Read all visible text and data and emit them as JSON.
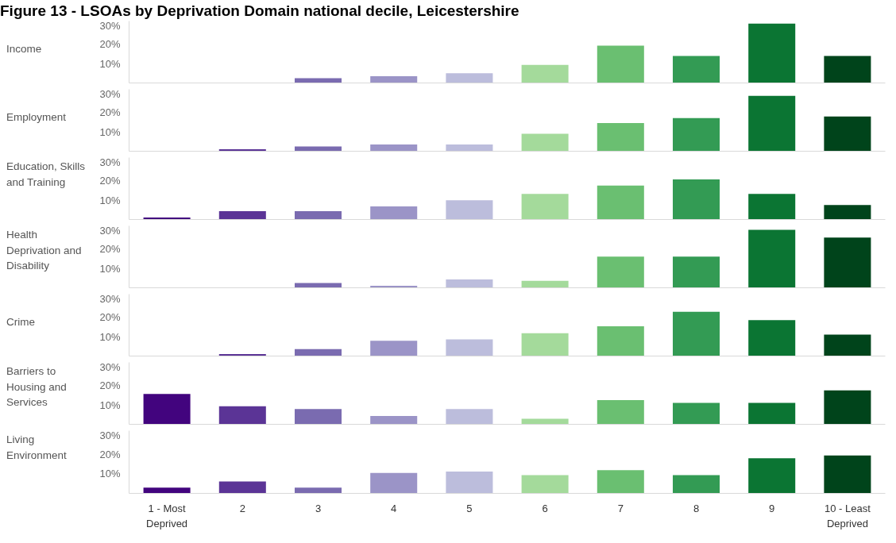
{
  "chart_data": [
    {
      "type": "bar",
      "title": "Figure 13 - LSOAs by Deprivation Domain national decile, Leicestershire",
      "ylabel": "Income",
      "categories": [
        "1 - Most Deprived",
        "2",
        "3",
        "4",
        "5",
        "6",
        "7",
        "8",
        "9",
        "10 - Least Deprived"
      ],
      "values": [
        0,
        0,
        2.5,
        3.5,
        5,
        9.3,
        19.3,
        14,
        30.7,
        14
      ],
      "colors": [
        "#42047e",
        "#5b3496",
        "#7a6bb0",
        "#9b94c7",
        "#bcbddc",
        "#a4da9b",
        "#6abf71",
        "#339b54",
        "#0b7533",
        "#00441b"
      ],
      "ylim": [
        0,
        32
      ],
      "yticks": [
        {
          "value": 10,
          "label": "10%"
        },
        {
          "value": 20,
          "label": "20%"
        },
        {
          "value": 30,
          "label": "30%"
        }
      ],
      "tick_labels": "y"
    },
    {
      "type": "bar",
      "ylabel": "Employment",
      "categories": [
        "1 - Most Deprived",
        "2",
        "3",
        "4",
        "5",
        "6",
        "7",
        "8",
        "9",
        "10 - Least Deprived"
      ],
      "values": [
        0,
        1,
        2.5,
        3.5,
        3.5,
        9,
        14.6,
        17.1,
        28.6,
        18
      ],
      "colors": [
        "#42047e",
        "#5b3496",
        "#7a6bb0",
        "#9b94c7",
        "#bcbddc",
        "#a4da9b",
        "#6abf71",
        "#339b54",
        "#0b7533",
        "#00441b"
      ],
      "ylim": [
        0,
        32
      ],
      "yticks": [
        {
          "value": 10,
          "label": "10%"
        },
        {
          "value": 20,
          "label": "20%"
        },
        {
          "value": 30,
          "label": "30%"
        }
      ],
      "tick_labels": "y"
    },
    {
      "type": "bar",
      "ylabel": "Education, Skills and Training",
      "categories": [
        "1 - Most Deprived",
        "2",
        "3",
        "4",
        "5",
        "6",
        "7",
        "8",
        "9",
        "10 - Least Deprived"
      ],
      "values": [
        1,
        4.3,
        4.3,
        6.8,
        10,
        13.2,
        17.5,
        20.7,
        13.2,
        7.5
      ],
      "colors": [
        "#42047e",
        "#5b3496",
        "#7a6bb0",
        "#9b94c7",
        "#bcbddc",
        "#a4da9b",
        "#6abf71",
        "#339b54",
        "#0b7533",
        "#00441b"
      ],
      "ylim": [
        0,
        32
      ],
      "yticks": [
        {
          "value": 10,
          "label": "10%"
        },
        {
          "value": 20,
          "label": "20%"
        },
        {
          "value": 30,
          "label": "30%"
        }
      ],
      "tick_labels": "y"
    },
    {
      "type": "bar",
      "ylabel": "Health Deprivation and Disability",
      "categories": [
        "1 - Most Deprived",
        "2",
        "3",
        "4",
        "5",
        "6",
        "7",
        "8",
        "9",
        "10 - Least Deprived"
      ],
      "values": [
        0,
        0,
        2.5,
        1,
        4.3,
        3.6,
        16.1,
        16.1,
        30,
        26
      ],
      "colors": [
        "#42047e",
        "#5b3496",
        "#7a6bb0",
        "#9b94c7",
        "#bcbddc",
        "#a4da9b",
        "#6abf71",
        "#339b54",
        "#0b7533",
        "#00441b"
      ],
      "ylim": [
        0,
        32
      ],
      "yticks": [
        {
          "value": 10,
          "label": "10%"
        },
        {
          "value": 20,
          "label": "20%"
        },
        {
          "value": 30,
          "label": "30%"
        }
      ],
      "tick_labels": "y"
    },
    {
      "type": "bar",
      "ylabel": "Crime",
      "categories": [
        "1 - Most Deprived",
        "2",
        "3",
        "4",
        "5",
        "6",
        "7",
        "8",
        "9",
        "10 - Least Deprived"
      ],
      "values": [
        0,
        1,
        3.6,
        7.9,
        8.6,
        11.8,
        15.4,
        22.9,
        18.6,
        11.1
      ],
      "colors": [
        "#42047e",
        "#5b3496",
        "#7a6bb0",
        "#9b94c7",
        "#bcbddc",
        "#a4da9b",
        "#6abf71",
        "#339b54",
        "#0b7533",
        "#00441b"
      ],
      "ylim": [
        0,
        32
      ],
      "yticks": [
        {
          "value": 10,
          "label": "10%"
        },
        {
          "value": 20,
          "label": "20%"
        },
        {
          "value": 30,
          "label": "30%"
        }
      ],
      "tick_labels": "y"
    },
    {
      "type": "bar",
      "ylabel": "Barriers to Housing and Services",
      "categories": [
        "1 - Most Deprived",
        "2",
        "3",
        "4",
        "5",
        "6",
        "7",
        "8",
        "9",
        "10 - Least Deprived"
      ],
      "values": [
        15.7,
        9.3,
        7.9,
        4.3,
        7.9,
        2.9,
        12.5,
        11.1,
        11.1,
        17.5
      ],
      "colors": [
        "#42047e",
        "#5b3496",
        "#7a6bb0",
        "#9b94c7",
        "#bcbddc",
        "#a4da9b",
        "#6abf71",
        "#339b54",
        "#0b7533",
        "#00441b"
      ],
      "ylim": [
        0,
        32
      ],
      "yticks": [
        {
          "value": 10,
          "label": "10%"
        },
        {
          "value": 20,
          "label": "20%"
        },
        {
          "value": 30,
          "label": "30%"
        }
      ],
      "tick_labels": "y"
    },
    {
      "type": "bar",
      "ylabel": "Living Environment",
      "categories": [
        "1 - Most Deprived",
        "2",
        "3",
        "4",
        "5",
        "6",
        "7",
        "8",
        "9",
        "10 - Least Deprived"
      ],
      "values": [
        2.9,
        6.1,
        2.9,
        10.4,
        11.1,
        9.3,
        11.8,
        9.3,
        17.9,
        19.3
      ],
      "colors": [
        "#42047e",
        "#5b3496",
        "#7a6bb0",
        "#9b94c7",
        "#bcbddc",
        "#a4da9b",
        "#6abf71",
        "#339b54",
        "#0b7533",
        "#00441b"
      ],
      "ylim": [
        0,
        32
      ],
      "yticks": [
        {
          "value": 10,
          "label": "10%"
        },
        {
          "value": 20,
          "label": "20%"
        },
        {
          "value": 30,
          "label": "30%"
        }
      ]
    }
  ]
}
